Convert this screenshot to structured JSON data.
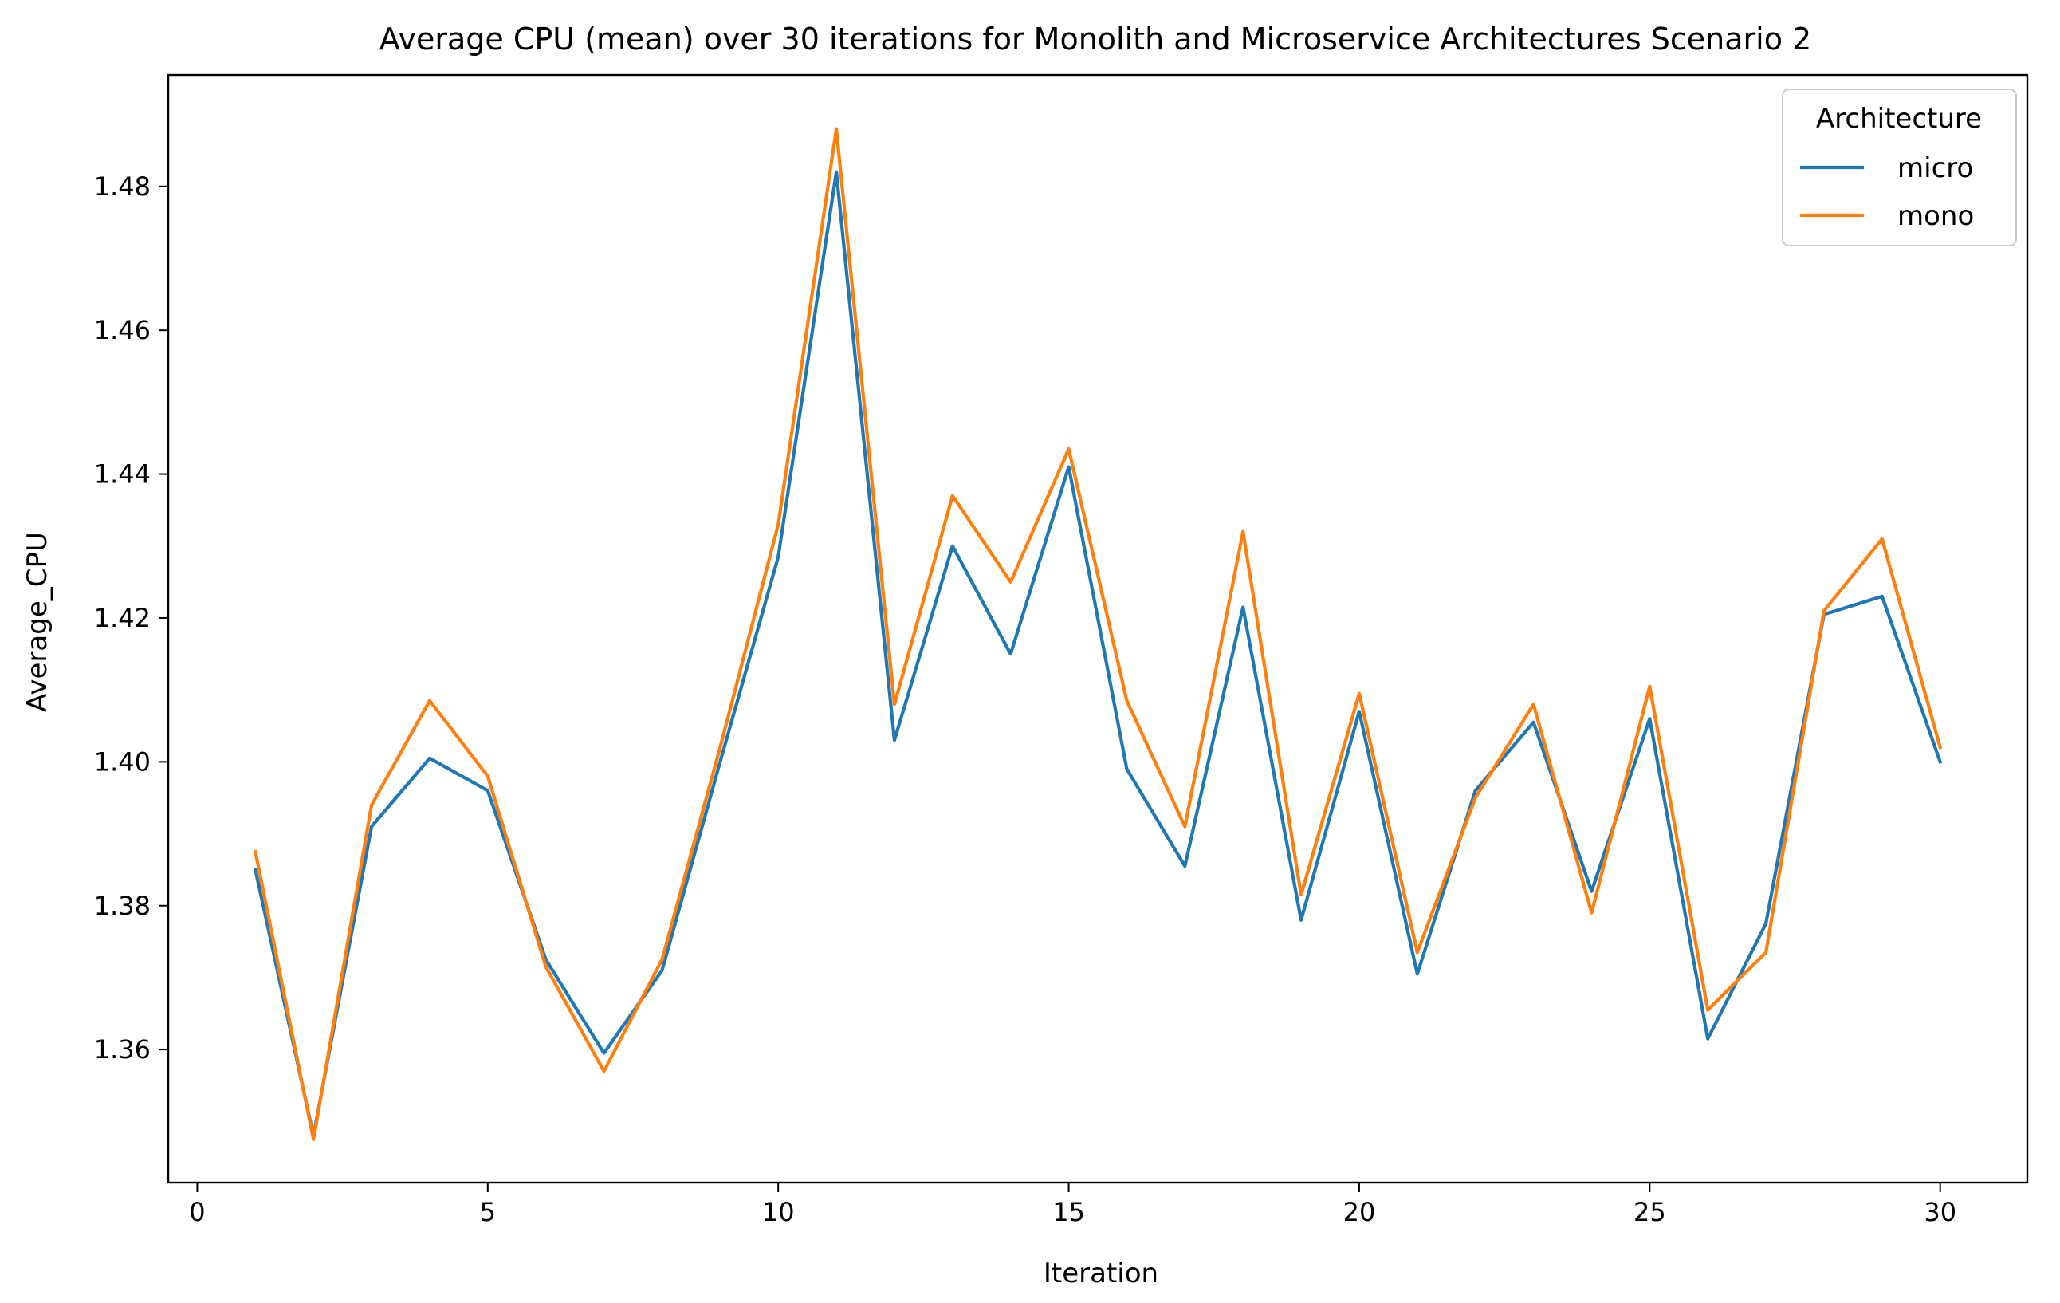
{
  "chart_data": {
    "type": "line",
    "title": "Average CPU (mean) over 30 iterations for Monolith and Microservice Architectures Scenario 2",
    "xlabel": "Iteration",
    "ylabel": "Average_CPU",
    "xlim": [
      -0.5,
      31.5
    ],
    "ylim": [
      1.3415,
      1.4955
    ],
    "xticks": [
      0,
      5,
      10,
      15,
      20,
      25,
      30
    ],
    "xtick_labels": [
      "0",
      "5",
      "10",
      "15",
      "20",
      "25",
      "30"
    ],
    "yticks": [
      1.36,
      1.38,
      1.4,
      1.42,
      1.44,
      1.46,
      1.48
    ],
    "ytick_labels": [
      "1.36",
      "1.38",
      "1.40",
      "1.42",
      "1.44",
      "1.46",
      "1.48"
    ],
    "grid": false,
    "legend": {
      "title": "Architecture",
      "position": "top-right"
    },
    "x": [
      1,
      2,
      3,
      4,
      5,
      6,
      7,
      8,
      9,
      10,
      11,
      12,
      13,
      14,
      15,
      16,
      17,
      18,
      19,
      20,
      21,
      22,
      23,
      24,
      25,
      26,
      27,
      28,
      29,
      30
    ],
    "series": [
      {
        "name": "micro",
        "color": "#1f77b4",
        "values": [
          1.385,
          1.348,
          1.391,
          1.4005,
          1.396,
          1.3725,
          1.3595,
          1.371,
          1.4,
          1.4285,
          1.482,
          1.403,
          1.43,
          1.415,
          1.441,
          1.399,
          1.3855,
          1.4215,
          1.378,
          1.407,
          1.3705,
          1.396,
          1.4055,
          1.382,
          1.406,
          1.3615,
          1.3775,
          1.4205,
          1.423,
          1.4
        ]
      },
      {
        "name": "mono",
        "color": "#ff7f0e",
        "values": [
          1.3875,
          1.3475,
          1.394,
          1.4085,
          1.398,
          1.3715,
          1.357,
          1.3725,
          1.402,
          1.433,
          1.488,
          1.408,
          1.437,
          1.425,
          1.4435,
          1.4085,
          1.391,
          1.432,
          1.3815,
          1.4095,
          1.3735,
          1.395,
          1.408,
          1.379,
          1.4105,
          1.3655,
          1.3735,
          1.421,
          1.431,
          1.402
        ]
      }
    ]
  }
}
